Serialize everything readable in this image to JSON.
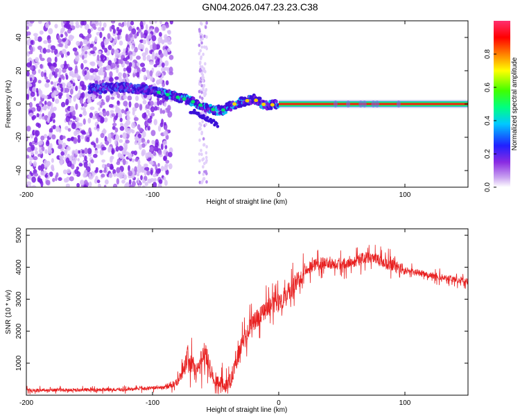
{
  "figure_title": "GN04.2026.047.23.23.C38",
  "colors": {
    "spectrum_purple": "#7a1fe0",
    "spectrum_light": "#cfa8f5",
    "snr_line": "#e82020",
    "line_red": "#ff1010"
  },
  "chart_data": [
    {
      "type": "heatmap",
      "name": "spectrogram",
      "xlabel": "Height of straight line (km)",
      "ylabel": "Frequency (Hz)",
      "xlim": [
        -200,
        150
      ],
      "ylim": [
        -50,
        50
      ],
      "x_ticks": [
        -200,
        -100,
        0,
        100
      ],
      "y_ticks": [
        -40,
        -20,
        0,
        20,
        40
      ],
      "colorbar": {
        "label": "Normalized spectral amplitude",
        "range": [
          0,
          1
        ],
        "ticks": [
          0.0,
          0.2,
          0.4,
          0.6,
          0.8
        ],
        "tick_labels": [
          "0.0",
          "0.2",
          "0.4",
          "0.6",
          "0.8"
        ],
        "colormap": "rainbow"
      },
      "ridge": {
        "description_x": [
          -150,
          -120,
          -100,
          -85,
          -70,
          -55,
          -45,
          -35,
          -20,
          -10,
          0,
          150
        ],
        "freq_y": [
          9,
          10,
          8,
          5,
          2,
          -3,
          -4,
          0,
          3,
          -1,
          0,
          0
        ]
      },
      "ridge_label": "",
      "noise_region_x": [
        -200,
        -90
      ]
    },
    {
      "type": "line",
      "name": "snr",
      "xlabel": "Height of straight line (km)",
      "ylabel": "SNR (10 * v/v)",
      "xlim": [
        -200,
        150
      ],
      "ylim": [
        0,
        5200
      ],
      "x_ticks": [
        -200,
        -100,
        0,
        100
      ],
      "y_ticks": [
        1000,
        2000,
        3000,
        4000,
        5000
      ],
      "envelope": {
        "x": [
          -200,
          -120,
          -90,
          -80,
          -72,
          -65,
          -58,
          -50,
          -40,
          -35,
          -30,
          -20,
          -10,
          0,
          10,
          20,
          30,
          40,
          50,
          60,
          70,
          80,
          90,
          100,
          120,
          150
        ],
        "y": [
          150,
          180,
          250,
          400,
          1200,
          700,
          1400,
          300,
          300,
          900,
          1500,
          2300,
          2700,
          2900,
          3300,
          3900,
          4100,
          4150,
          4100,
          4200,
          4300,
          4200,
          4050,
          3900,
          3750,
          3550
        ]
      },
      "series_name": "SNR"
    }
  ]
}
